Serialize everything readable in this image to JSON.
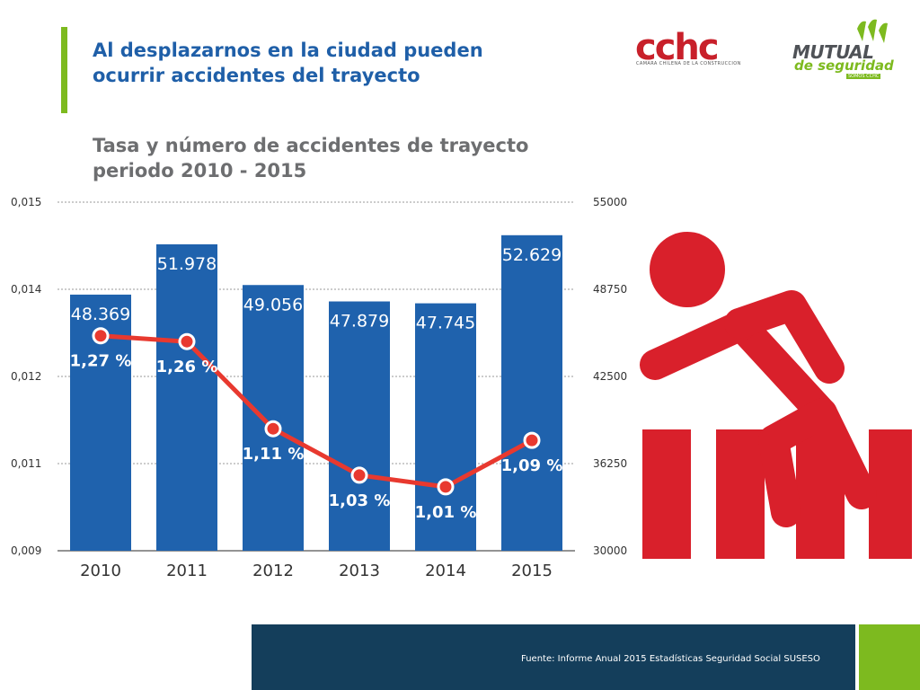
{
  "header": {
    "headline": "Al desplazarnos en la ciudad pueden ocurrir accidentes del trayecto",
    "subtitle": "Tasa y número de accidentes de trayecto periodo 2010 - 2015"
  },
  "logos": {
    "cchc_text": "cchc",
    "cchc_subtitle": "CAMARA CHILENA DE LA CONSTRUCCION",
    "mutual_text": "MUTUAL",
    "mutual_subtitle": "de seguridad",
    "mutual_tag": "SOMOS CCHC"
  },
  "colors": {
    "accent_green": "#7dba1f",
    "title_blue": "#1f5fa8",
    "bar_blue": "#1f62ad",
    "line_red": "#e8392f",
    "icon_red": "#d9202b",
    "footer_navy": "#143e5b"
  },
  "chart_data": {
    "type": "bar",
    "categories": [
      "2010",
      "2011",
      "2012",
      "2013",
      "2014",
      "2015"
    ],
    "series": [
      {
        "type": "bar",
        "axis": "right",
        "values": [
          48369,
          51978,
          49056,
          47879,
          47745,
          52629
        ],
        "labels": [
          "48.369",
          "51.978",
          "49.056",
          "47.879",
          "47.745",
          "52.629"
        ]
      },
      {
        "type": "line",
        "axis": "left",
        "values": [
          0.0127,
          0.0126,
          0.0111,
          0.0103,
          0.0101,
          0.0109
        ],
        "labels": [
          "1,27 %",
          "1,26 %",
          "1,11 %",
          "1,03 %",
          "1,01 %",
          "1,09 %"
        ]
      }
    ],
    "y_left": {
      "ticks": [
        "0,009",
        "0,011",
        "0,012",
        "0,014",
        "0,015"
      ],
      "range": [
        0.009,
        0.015
      ]
    },
    "y_right": {
      "ticks": [
        "30000",
        "36250",
        "42500",
        "48750",
        "55000"
      ],
      "range": [
        30000,
        55000
      ]
    },
    "grid": true
  },
  "icon": "pedestrian-crosswalk-icon",
  "footer": {
    "source": "Fuente: Informe Anual 2015 Estadísticas Seguridad Social SUSESO"
  }
}
